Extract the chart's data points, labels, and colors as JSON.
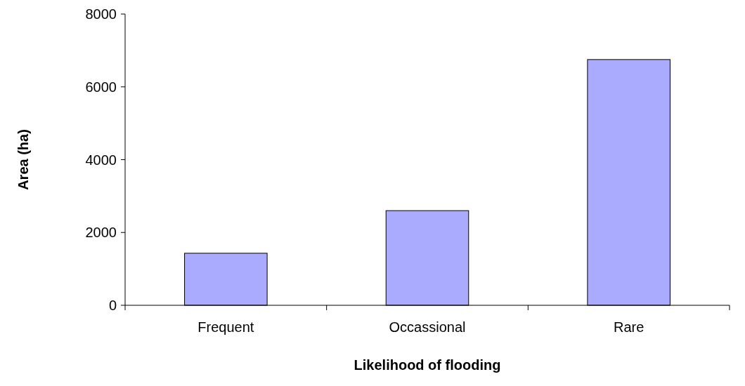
{
  "chart_data": {
    "type": "bar",
    "xlabel": "Likelihood of flooding",
    "ylabel": "Area (ha)",
    "categories": [
      "Frequent",
      "Occassional",
      "Rare"
    ],
    "values": [
      1430,
      2600,
      6750
    ],
    "color": "#aaaaff",
    "ylim": [
      0,
      8000
    ],
    "yticks": [
      0,
      2000,
      4000,
      6000,
      8000
    ],
    "grid": false
  }
}
